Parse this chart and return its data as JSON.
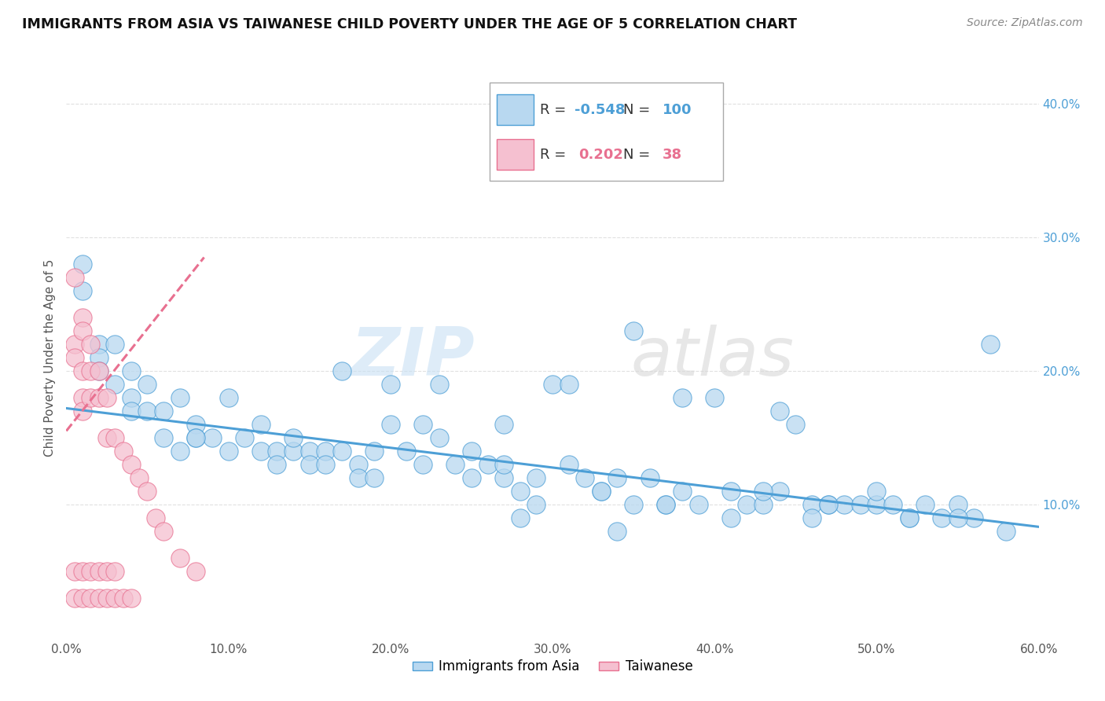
{
  "title": "IMMIGRANTS FROM ASIA VS TAIWANESE CHILD POVERTY UNDER THE AGE OF 5 CORRELATION CHART",
  "source": "Source: ZipAtlas.com",
  "ylabel": "Child Poverty Under the Age of 5",
  "xmin": 0.0,
  "xmax": 0.6,
  "ymin": 0.0,
  "ymax": 0.42,
  "xtick_labels": [
    "0.0%",
    "",
    "",
    "",
    "",
    "",
    "",
    "",
    "",
    "",
    "10.0%",
    "",
    "",
    "",
    "",
    "",
    "",
    "",
    "",
    "",
    "20.0%",
    "",
    "",
    "",
    "",
    "",
    "",
    "",
    "",
    "",
    "30.0%",
    "",
    "",
    "",
    "",
    "",
    "",
    "",
    "",
    "",
    "40.0%",
    "",
    "",
    "",
    "",
    "",
    "",
    "",
    "",
    "",
    "50.0%",
    "",
    "",
    "",
    "",
    "",
    "",
    "",
    "",
    "",
    "60.0%"
  ],
  "xtick_values_major": [
    0.0,
    0.1,
    0.2,
    0.3,
    0.4,
    0.5,
    0.6
  ],
  "xtick_labels_major": [
    "0.0%",
    "10.0%",
    "20.0%",
    "30.0%",
    "40.0%",
    "50.0%",
    "60.0%"
  ],
  "ytick_values_right": [
    0.1,
    0.2,
    0.3,
    0.4
  ],
  "ytick_labels_right": [
    "10.0%",
    "20.0%",
    "30.0%",
    "40.0%"
  ],
  "R_asia": -0.548,
  "N_asia": 100,
  "R_taiwanese": 0.202,
  "N_taiwanese": 38,
  "asia_scatter_x": [
    0.01,
    0.01,
    0.02,
    0.02,
    0.02,
    0.03,
    0.03,
    0.04,
    0.04,
    0.04,
    0.05,
    0.05,
    0.06,
    0.06,
    0.07,
    0.07,
    0.08,
    0.08,
    0.09,
    0.1,
    0.1,
    0.11,
    0.12,
    0.12,
    0.13,
    0.13,
    0.14,
    0.15,
    0.15,
    0.16,
    0.16,
    0.17,
    0.18,
    0.18,
    0.19,
    0.2,
    0.2,
    0.21,
    0.22,
    0.23,
    0.23,
    0.24,
    0.25,
    0.26,
    0.27,
    0.27,
    0.28,
    0.29,
    0.3,
    0.31,
    0.32,
    0.33,
    0.34,
    0.35,
    0.36,
    0.37,
    0.38,
    0.39,
    0.4,
    0.41,
    0.42,
    0.43,
    0.44,
    0.45,
    0.46,
    0.47,
    0.48,
    0.49,
    0.5,
    0.51,
    0.52,
    0.53,
    0.54,
    0.55,
    0.56,
    0.57,
    0.22,
    0.31,
    0.38,
    0.27,
    0.17,
    0.44,
    0.33,
    0.5,
    0.14,
    0.25,
    0.37,
    0.43,
    0.29,
    0.55,
    0.19,
    0.35,
    0.41,
    0.47,
    0.28,
    0.34,
    0.46,
    0.52,
    0.58,
    0.08
  ],
  "asia_scatter_y": [
    0.28,
    0.26,
    0.22,
    0.21,
    0.2,
    0.22,
    0.19,
    0.2,
    0.18,
    0.17,
    0.19,
    0.17,
    0.17,
    0.15,
    0.18,
    0.14,
    0.16,
    0.15,
    0.15,
    0.18,
    0.14,
    0.15,
    0.14,
    0.16,
    0.14,
    0.13,
    0.14,
    0.14,
    0.13,
    0.14,
    0.13,
    0.14,
    0.13,
    0.12,
    0.14,
    0.19,
    0.16,
    0.14,
    0.13,
    0.19,
    0.15,
    0.13,
    0.14,
    0.13,
    0.12,
    0.13,
    0.11,
    0.12,
    0.19,
    0.13,
    0.12,
    0.11,
    0.12,
    0.23,
    0.12,
    0.1,
    0.11,
    0.1,
    0.18,
    0.11,
    0.1,
    0.1,
    0.11,
    0.16,
    0.1,
    0.1,
    0.1,
    0.1,
    0.1,
    0.1,
    0.09,
    0.1,
    0.09,
    0.1,
    0.09,
    0.22,
    0.16,
    0.19,
    0.18,
    0.16,
    0.2,
    0.17,
    0.11,
    0.11,
    0.15,
    0.12,
    0.1,
    0.11,
    0.1,
    0.09,
    0.12,
    0.1,
    0.09,
    0.1,
    0.09,
    0.08,
    0.09,
    0.09,
    0.08,
    0.15
  ],
  "taiwanese_scatter_x": [
    0.005,
    0.005,
    0.005,
    0.005,
    0.005,
    0.01,
    0.01,
    0.01,
    0.01,
    0.01,
    0.01,
    0.01,
    0.015,
    0.015,
    0.015,
    0.015,
    0.015,
    0.02,
    0.02,
    0.02,
    0.02,
    0.025,
    0.025,
    0.025,
    0.025,
    0.03,
    0.03,
    0.03,
    0.035,
    0.035,
    0.04,
    0.04,
    0.045,
    0.05,
    0.055,
    0.06,
    0.07,
    0.08
  ],
  "taiwanese_scatter_y": [
    0.27,
    0.22,
    0.21,
    0.05,
    0.03,
    0.24,
    0.23,
    0.2,
    0.18,
    0.17,
    0.05,
    0.03,
    0.22,
    0.2,
    0.18,
    0.05,
    0.03,
    0.2,
    0.18,
    0.05,
    0.03,
    0.18,
    0.15,
    0.05,
    0.03,
    0.15,
    0.05,
    0.03,
    0.14,
    0.03,
    0.13,
    0.03,
    0.12,
    0.11,
    0.09,
    0.08,
    0.06,
    0.05
  ],
  "watermark_zip": "ZIP",
  "watermark_atlas": "atlas",
  "asia_line_color": "#4d9fd6",
  "taiwanese_line_color": "#e87090",
  "asia_dot_color": "#b8d8f0",
  "taiwanese_dot_color": "#f5c0d0",
  "background_color": "#ffffff",
  "grid_color": "#e0e0e0",
  "asia_line_intercept": 0.172,
  "asia_line_slope": -0.148,
  "taiwanese_line_x0": 0.0,
  "taiwanese_line_y0": 0.155,
  "taiwanese_line_x1": 0.085,
  "taiwanese_line_y1": 0.285
}
